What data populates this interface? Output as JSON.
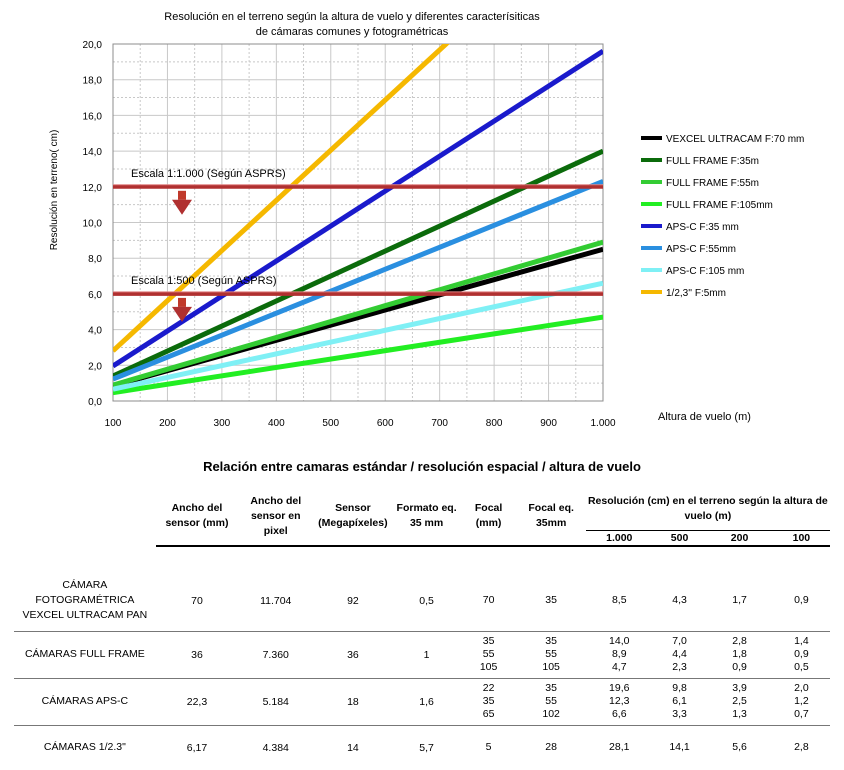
{
  "chart_data": {
    "type": "line",
    "title": "Resolución en el terreno según la altura de vuelo y diferentes caracterísiticas\nde cámaras comunes y fotogramétricas",
    "xlabel": "Altura de vuelo  (m)",
    "ylabel": "Resolución en terreno( cm)",
    "xlim": [
      100,
      1000
    ],
    "ylim": [
      0,
      20
    ],
    "x_ticks": [
      "100",
      "200",
      "300",
      "400",
      "500",
      "600",
      "700",
      "800",
      "900",
      "1.000"
    ],
    "y_ticks": [
      "0,0",
      "2,0",
      "4,0",
      "6,0",
      "8,0",
      "10,0",
      "12,0",
      "14,0",
      "16,0",
      "18,0",
      "20,0"
    ],
    "grid": true,
    "legend_position": "right",
    "series": [
      {
        "name": "VEXCEL ULTRACAM F:70 mm",
        "color": "#000000",
        "x": [
          100,
          1000
        ],
        "y": [
          0.85,
          8.5
        ]
      },
      {
        "name": "FULL FRAME F:35m",
        "color": "#0b6b0b",
        "x": [
          100,
          1000
        ],
        "y": [
          1.4,
          14.0
        ]
      },
      {
        "name": "FULL FRAME F:55m",
        "color": "#33cc33",
        "x": [
          100,
          1000
        ],
        "y": [
          0.89,
          8.9
        ]
      },
      {
        "name": "FULL FRAME F:105mm",
        "color": "#22ee22",
        "x": [
          100,
          1000
        ],
        "y": [
          0.47,
          4.7
        ]
      },
      {
        "name": "APS-C F:35 mm",
        "color": "#1a1acc",
        "x": [
          100,
          1000
        ],
        "y": [
          1.96,
          19.6
        ]
      },
      {
        "name": "APS-C F:55mm",
        "color": "#2a8fe0",
        "x": [
          100,
          1000
        ],
        "y": [
          1.23,
          12.3
        ]
      },
      {
        "name": "APS-C F:105 mm",
        "color": "#7ff0f5",
        "x": [
          100,
          1000
        ],
        "y": [
          0.66,
          6.6
        ]
      },
      {
        "name": "1/2,3'' F:5mm",
        "color": "#f5b800",
        "x": [
          100,
          1000
        ],
        "y": [
          2.81,
          28.1
        ]
      }
    ],
    "annotations": [
      {
        "text": "Escala 1:1.000 (Según ASPRS)",
        "y": 12.0,
        "line_color": "#b03030"
      },
      {
        "text": "Escala 1:500 (Según ASPRS)",
        "y": 6.0,
        "line_color": "#b03030"
      }
    ]
  },
  "table": {
    "title": "Relación entre camaras estándar / resolución espacial / altura de vuelo",
    "headers": {
      "sensor_width": "Ancho del sensor (mm)",
      "sensor_pixels": "Ancho del sensor en pixel",
      "sensor_mp": "Sensor (Megapíxeles)",
      "format": "Formato eq. 35 mm",
      "focal": "Focal (mm)",
      "focal35": "Focal eq. 35mm",
      "resolution": "Resolución (cm) en el terreno según la altura de vuelo (m)",
      "heights": [
        "1.000",
        "500",
        "200",
        "100"
      ]
    },
    "rows": [
      {
        "camera": "CÁMARA FOTOGRAMÉTRICA VEXCEL ULTRACAM PAN",
        "width": "70",
        "pixels": "11.704",
        "mp": "92",
        "format": "0,5",
        "focal": [
          "70"
        ],
        "focal35": [
          "35"
        ],
        "r1000": [
          "8,5"
        ],
        "r500": [
          "4,3"
        ],
        "r200": [
          "1,7"
        ],
        "r100": [
          "0,9"
        ]
      },
      {
        "camera": "CÁMARAS FULL FRAME",
        "width": "36",
        "pixels": "7.360",
        "mp": "36",
        "format": "1",
        "focal": [
          "35",
          "55",
          "105"
        ],
        "focal35": [
          "35",
          "55",
          "105"
        ],
        "r1000": [
          "14,0",
          "8,9",
          "4,7"
        ],
        "r500": [
          "7,0",
          "4,4",
          "2,3"
        ],
        "r200": [
          "2,8",
          "1,8",
          "0,9"
        ],
        "r100": [
          "1,4",
          "0,9",
          "0,5"
        ]
      },
      {
        "camera": "CÁMARAS APS-C",
        "width": "22,3",
        "pixels": "5.184",
        "mp": "18",
        "format": "1,6",
        "focal": [
          "22",
          "35",
          "65"
        ],
        "focal35": [
          "35",
          "55",
          "102"
        ],
        "r1000": [
          "19,6",
          "12,3",
          "6,6"
        ],
        "r500": [
          "9,8",
          "6,1",
          "3,3"
        ],
        "r200": [
          "3,9",
          "2,5",
          "1,3"
        ],
        "r100": [
          "2,0",
          "1,2",
          "0,7"
        ]
      },
      {
        "camera": "CÁMARAS 1/2.3\"",
        "width": "6,17",
        "pixels": "4.384",
        "mp": "14",
        "format": "5,7",
        "focal": [
          "5"
        ],
        "focal35": [
          "28"
        ],
        "r1000": [
          "28,1"
        ],
        "r500": [
          "14,1"
        ],
        "r200": [
          "5,6"
        ],
        "r100": [
          "2,8"
        ]
      }
    ]
  }
}
